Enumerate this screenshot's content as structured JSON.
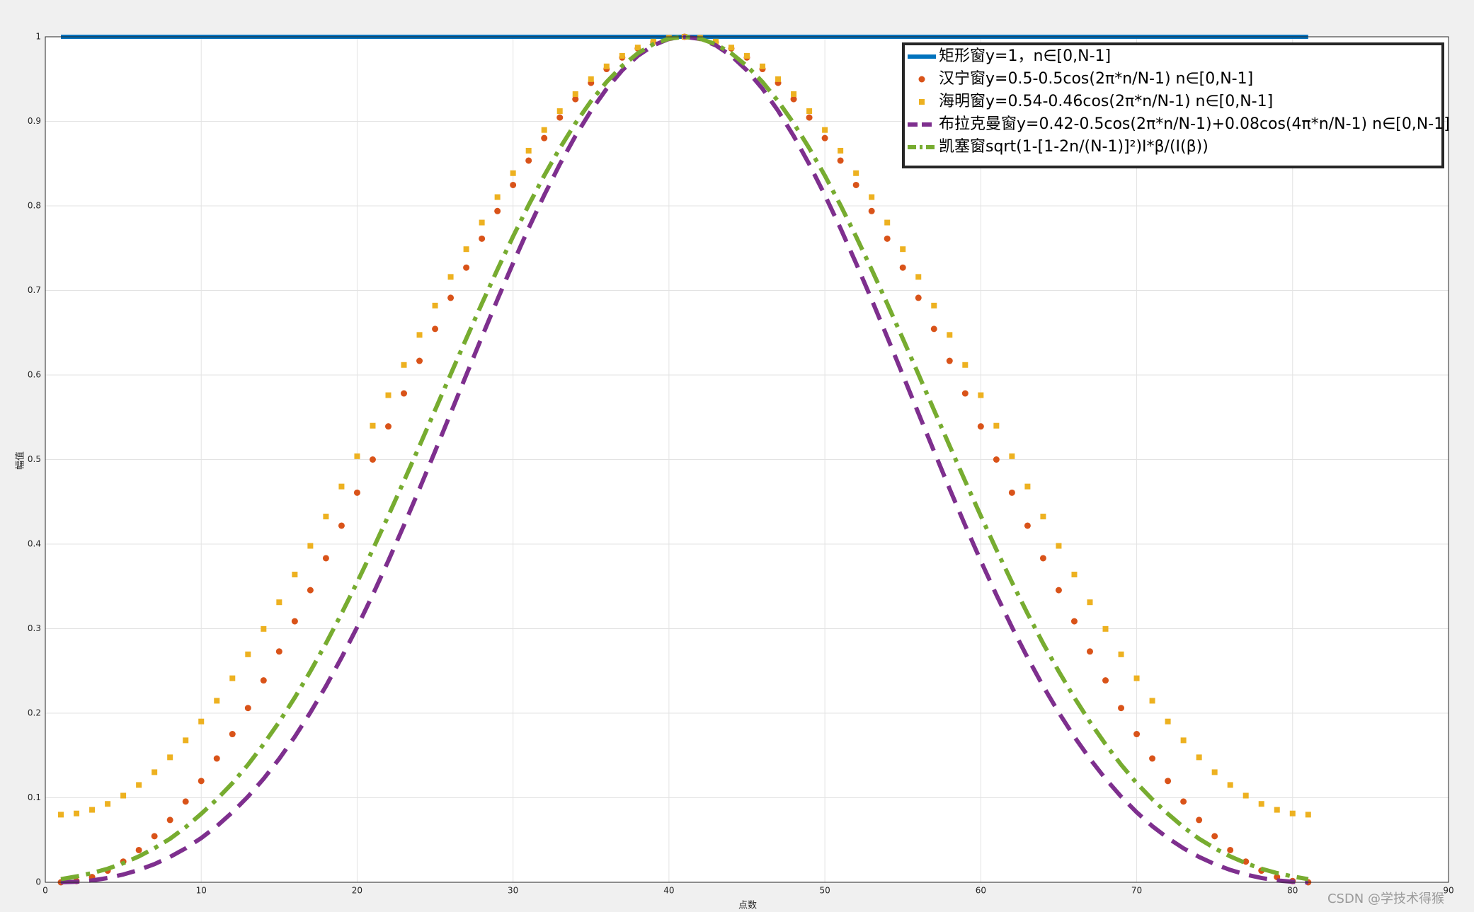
{
  "chart_data": {
    "type": "line",
    "xlabel": "点数",
    "ylabel": "幅值",
    "xlim": [
      0,
      90
    ],
    "xticks": [
      0,
      10,
      20,
      30,
      40,
      50,
      60,
      70,
      80,
      90
    ],
    "ylim": [
      0,
      1
    ],
    "yticks": [
      0,
      0.1,
      0.2,
      0.3,
      0.4,
      0.5,
      0.6,
      0.7,
      0.8,
      0.9,
      1
    ],
    "grid": true,
    "legend": "northeast",
    "watermark": "CSDN @学技术得猴",
    "x": [
      1,
      2,
      3,
      4,
      5,
      6,
      7,
      8,
      9,
      10,
      11,
      12,
      13,
      14,
      15,
      16,
      17,
      18,
      19,
      20,
      21,
      22,
      23,
      24,
      25,
      26,
      27,
      28,
      29,
      30,
      31,
      32,
      33,
      34,
      35,
      36,
      37,
      38,
      39,
      40,
      41,
      42,
      43,
      44,
      45,
      46,
      47,
      48,
      49,
      50,
      51,
      52,
      53,
      54,
      55,
      56,
      57,
      58,
      59,
      60,
      61,
      62,
      63,
      64,
      65,
      66,
      67,
      68,
      69,
      70,
      71,
      72,
      73,
      74,
      75,
      76,
      77,
      78,
      79,
      80,
      81
    ],
    "series": [
      {
        "name": "矩形窗y=1，n∈[0,N-1]",
        "color": "#0072bd",
        "linestyle": "solid",
        "marker": "none",
        "values": [
          1,
          1,
          1,
          1,
          1,
          1,
          1,
          1,
          1,
          1,
          1,
          1,
          1,
          1,
          1,
          1,
          1,
          1,
          1,
          1,
          1,
          1,
          1,
          1,
          1,
          1,
          1,
          1,
          1,
          1,
          1,
          1,
          1,
          1,
          1,
          1,
          1,
          1,
          1,
          1,
          1,
          1,
          1,
          1,
          1,
          1,
          1,
          1,
          1,
          1,
          1,
          1,
          1,
          1,
          1,
          1,
          1,
          1,
          1,
          1,
          1,
          1,
          1,
          1,
          1,
          1,
          1,
          1,
          1,
          1,
          1,
          1,
          1,
          1,
          1,
          1,
          1,
          1,
          1,
          1,
          1
        ]
      },
      {
        "name": "汉宁窗y=0.5-0.5cos(2π*n/N-1) n∈[0,N-1]",
        "color": "#d95319",
        "linestyle": "none",
        "marker": "circle",
        "values": [
          0,
          0.0015,
          0.0062,
          0.0138,
          0.0245,
          0.0381,
          0.0545,
          0.0737,
          0.0955,
          0.1198,
          0.1464,
          0.1753,
          0.2061,
          0.2388,
          0.273,
          0.3087,
          0.3455,
          0.3833,
          0.4218,
          0.4608,
          0.5,
          0.5392,
          0.5782,
          0.6167,
          0.6545,
          0.6913,
          0.727,
          0.7612,
          0.7939,
          0.8247,
          0.8536,
          0.8802,
          0.9045,
          0.9263,
          0.9455,
          0.9619,
          0.9755,
          0.9862,
          0.9938,
          0.9985,
          1,
          0.9985,
          0.9938,
          0.9862,
          0.9755,
          0.9619,
          0.9455,
          0.9263,
          0.9045,
          0.8802,
          0.8536,
          0.8247,
          0.7939,
          0.7612,
          0.727,
          0.6913,
          0.6545,
          0.6167,
          0.5782,
          0.5392,
          0.5,
          0.4608,
          0.4218,
          0.3833,
          0.3455,
          0.3087,
          0.273,
          0.2388,
          0.2061,
          0.1753,
          0.1464,
          0.1198,
          0.0955,
          0.0737,
          0.0545,
          0.0381,
          0.0245,
          0.0138,
          0.0062,
          0.0015,
          0
        ]
      },
      {
        "name": "海明窗y=0.54-0.46cos(2π*n/N-1) n∈[0,N-1]",
        "color": "#edb120",
        "linestyle": "none",
        "marker": "square",
        "values": [
          0.08,
          0.0814,
          0.0857,
          0.0927,
          0.1025,
          0.1151,
          0.1302,
          0.1478,
          0.1679,
          0.1902,
          0.2147,
          0.2413,
          0.2696,
          0.2997,
          0.3312,
          0.364,
          0.3979,
          0.4326,
          0.4681,
          0.5039,
          0.54,
          0.5761,
          0.6119,
          0.6474,
          0.6821,
          0.716,
          0.7488,
          0.7803,
          0.8104,
          0.8387,
          0.8653,
          0.8898,
          0.9121,
          0.9322,
          0.9499,
          0.965,
          0.9775,
          0.9873,
          0.9943,
          0.9986,
          1,
          0.9986,
          0.9943,
          0.9873,
          0.9775,
          0.965,
          0.9499,
          0.9322,
          0.9121,
          0.8898,
          0.8653,
          0.8387,
          0.8104,
          0.7803,
          0.7488,
          0.716,
          0.6821,
          0.6474,
          0.6119,
          0.5761,
          0.54,
          0.5039,
          0.4681,
          0.4326,
          0.3979,
          0.364,
          0.3312,
          0.2997,
          0.2696,
          0.2413,
          0.2147,
          0.1902,
          0.1679,
          0.1478,
          0.1302,
          0.1151,
          0.1025,
          0.0927,
          0.0857,
          0.0814,
          0.08
        ]
      },
      {
        "name": "布拉克曼窗y=0.42-0.5cos(2π*n/N-1)+0.08cos(4π*n/N-1) n∈[0,N-1]",
        "color": "#7e2f8e",
        "linestyle": "dashed",
        "marker": "none",
        "values": [
          0,
          0.0006,
          0.0022,
          0.0051,
          0.0092,
          0.0146,
          0.0215,
          0.03,
          0.0402,
          0.0523,
          0.0664,
          0.0828,
          0.1014,
          0.1224,
          0.146,
          0.1721,
          0.2008,
          0.232,
          0.2657,
          0.3017,
          0.34,
          0.3802,
          0.4221,
          0.4654,
          0.5098,
          0.5548,
          0.6,
          0.6449,
          0.6892,
          0.7322,
          0.7736,
          0.8127,
          0.8492,
          0.8826,
          0.9125,
          0.9385,
          0.9603,
          0.9775,
          0.9899,
          0.9975,
          1,
          0.9975,
          0.9899,
          0.9775,
          0.9603,
          0.9385,
          0.9125,
          0.8826,
          0.8492,
          0.8127,
          0.7736,
          0.7322,
          0.6892,
          0.6449,
          0.6,
          0.5548,
          0.5098,
          0.4654,
          0.4221,
          0.3802,
          0.34,
          0.3017,
          0.2657,
          0.232,
          0.2008,
          0.1721,
          0.146,
          0.1224,
          0.1014,
          0.0828,
          0.0664,
          0.0523,
          0.0402,
          0.03,
          0.0215,
          0.0146,
          0.0092,
          0.0051,
          0.0022,
          0.0006,
          0
        ]
      },
      {
        "name": "凯塞窗sqrt(1-[1-2n/(N-1)]²)I*β/(I(β))",
        "color": "#77ac30",
        "linestyle": "dashdot",
        "marker": "none",
        "values": [
          0.0037,
          0.0069,
          0.0109,
          0.016,
          0.0226,
          0.0306,
          0.0403,
          0.0515,
          0.0652,
          0.081,
          0.0981,
          0.1173,
          0.1391,
          0.1633,
          0.1897,
          0.2185,
          0.2495,
          0.2825,
          0.3178,
          0.3548,
          0.3934,
          0.4334,
          0.4744,
          0.5162,
          0.5585,
          0.6009,
          0.643,
          0.6844,
          0.7248,
          0.7638,
          0.8009,
          0.8358,
          0.8682,
          0.8977,
          0.9239,
          0.9466,
          0.9655,
          0.9805,
          0.9913,
          0.9978,
          1,
          0.9978,
          0.9913,
          0.9805,
          0.9655,
          0.9466,
          0.9239,
          0.8977,
          0.8682,
          0.8358,
          0.8009,
          0.7638,
          0.7248,
          0.6844,
          0.643,
          0.6009,
          0.5585,
          0.5162,
          0.4744,
          0.4334,
          0.3934,
          0.3548,
          0.3178,
          0.2825,
          0.2495,
          0.2185,
          0.1897,
          0.1633,
          0.1391,
          0.1173,
          0.0981,
          0.081,
          0.0652,
          0.0515,
          0.0403,
          0.0306,
          0.0226,
          0.016,
          0.0109,
          0.0069,
          0.0037
        ]
      }
    ]
  }
}
